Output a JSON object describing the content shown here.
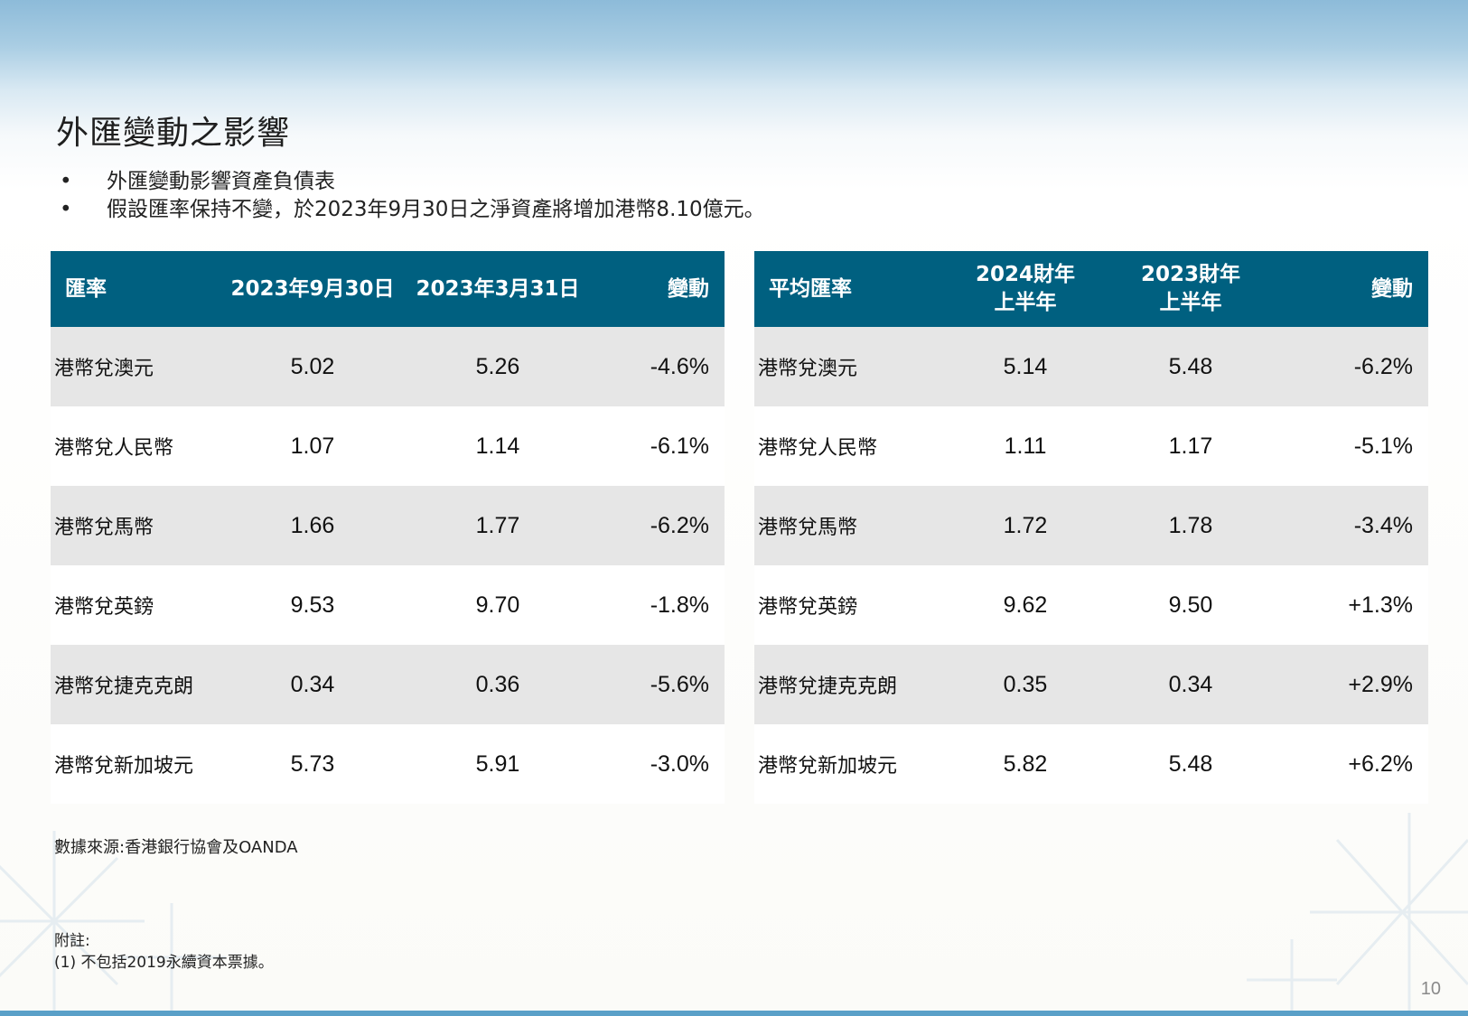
{
  "title": "外匯變動之影響",
  "bullets": [
    "外匯變動影響資產負債表",
    "假設匯率保持不變，於2023年9月30日之淨資產將增加港幣8.10億元。"
  ],
  "left_table": {
    "headers": [
      "匯率",
      "2023年9月30日",
      "2023年3月31日",
      "變動"
    ],
    "rows": [
      {
        "label": "港幣兌澳元",
        "a": "5.02",
        "b": "5.26",
        "change": "-4.6%"
      },
      {
        "label": "港幣兌人民幣",
        "a": "1.07",
        "b": "1.14",
        "change": "-6.1%"
      },
      {
        "label": "港幣兌馬幣",
        "a": "1.66",
        "b": "1.77",
        "change": "-6.2%"
      },
      {
        "label": "港幣兌英鎊",
        "a": "9.53",
        "b": "9.70",
        "change": "-1.8%"
      },
      {
        "label": "港幣兌捷克克朗",
        "a": "0.34",
        "b": "0.36",
        "change": "-5.6%"
      },
      {
        "label": "港幣兌新加坡元",
        "a": "5.73",
        "b": "5.91",
        "change": "-3.0%"
      }
    ]
  },
  "right_table": {
    "headers": [
      {
        "line1": "平均匯率",
        "line2": ""
      },
      {
        "line1": "2024財年",
        "line2": "上半年"
      },
      {
        "line1": "2023財年",
        "line2": "上半年"
      },
      {
        "line1": "變動",
        "line2": ""
      }
    ],
    "rows": [
      {
        "label": "港幣兌澳元",
        "a": "5.14",
        "b": "5.48",
        "change": "-6.2%"
      },
      {
        "label": "港幣兌人民幣",
        "a": "1.11",
        "b": "1.17",
        "change": "-5.1%"
      },
      {
        "label": "港幣兌馬幣",
        "a": "1.72",
        "b": "1.78",
        "change": "-3.4%"
      },
      {
        "label": "港幣兌英鎊",
        "a": "9.62",
        "b": "9.50",
        "change": "+1.3%"
      },
      {
        "label": "港幣兌捷克克朗",
        "a": "0.35",
        "b": "0.34",
        "change": "+2.9%"
      },
      {
        "label": "港幣兌新加坡元",
        "a": "5.82",
        "b": "5.48",
        "change": "+6.2%"
      }
    ]
  },
  "source": "數據來源:香港銀行協會及OANDA",
  "notes": {
    "heading": "附註:",
    "items": [
      "(1)  不包括2019永續資本票據。"
    ]
  },
  "page_number": "10",
  "colors": {
    "header_bg": "#006080",
    "row_alt_bg": "#e6e6e6",
    "bottom_bar": "#5aa0c8"
  }
}
